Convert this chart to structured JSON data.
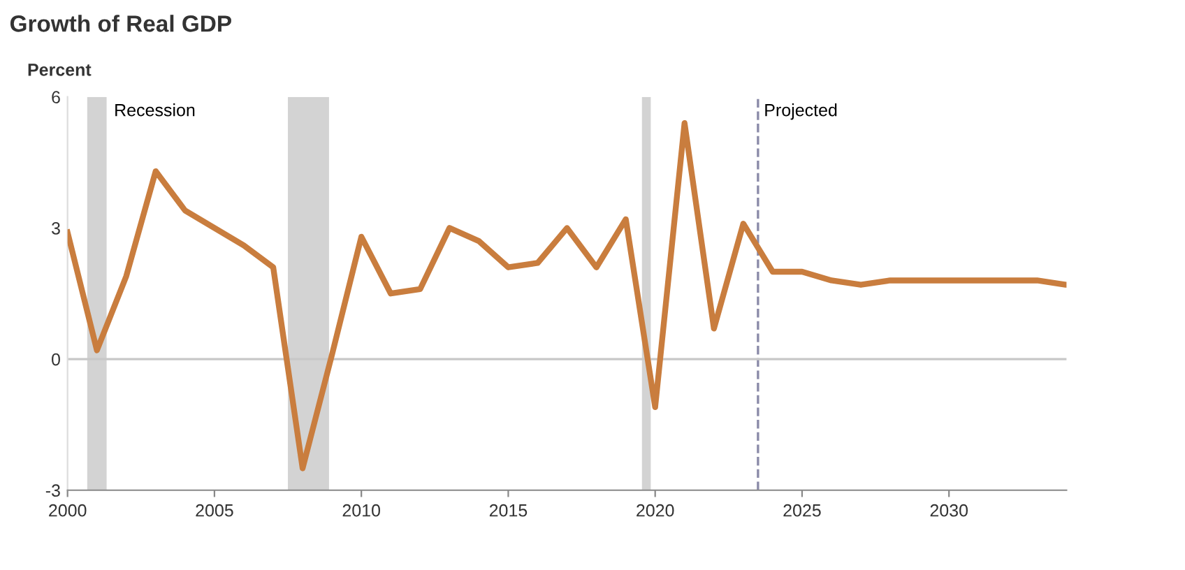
{
  "chart_data": {
    "type": "line",
    "title": "Growth of Real GDP",
    "ylabel": "Percent",
    "x": [
      2000,
      2001,
      2002,
      2003,
      2004,
      2005,
      2006,
      2007,
      2008,
      2009,
      2010,
      2011,
      2012,
      2013,
      2014,
      2015,
      2016,
      2017,
      2018,
      2019,
      2020,
      2021,
      2022,
      2023,
      2024,
      2025,
      2026,
      2027,
      2028,
      2029,
      2030,
      2031,
      2032,
      2033,
      2034
    ],
    "series": [
      {
        "color": "#c97d3e",
        "values": [
          2.9,
          0.2,
          1.9,
          4.3,
          3.4,
          3.0,
          2.6,
          2.1,
          -2.5,
          0.1,
          2.8,
          1.5,
          1.6,
          3.0,
          2.7,
          2.1,
          2.2,
          3.0,
          2.1,
          3.2,
          -1.1,
          5.4,
          0.7,
          3.1,
          2.0,
          2.0,
          1.8,
          1.7,
          1.8,
          1.8,
          1.8,
          1.8,
          1.8,
          1.8,
          1.7
        ]
      }
    ],
    "xlim": [
      2000,
      2034
    ],
    "xticks": [
      2000,
      2005,
      2010,
      2015,
      2020,
      2025,
      2030
    ],
    "ylim": [
      -3,
      6
    ],
    "yticks": [
      -3,
      0,
      3,
      6
    ],
    "bands": [
      {
        "axis": "x",
        "from": 2000.67,
        "to": 2001.33,
        "label": "Recession",
        "color": "#d3d3d3"
      },
      {
        "axis": "x",
        "from": 2007.5,
        "to": 2008.9,
        "label": null,
        "color": "#d3d3d3"
      },
      {
        "axis": "x",
        "from": 2019.55,
        "to": 2019.85,
        "label": null,
        "color": "#d3d3d3"
      }
    ],
    "ref_lines": [
      {
        "axis": "x",
        "value": 2023.5,
        "label": "Projected",
        "color": "#8a8aa8",
        "line_style": "dashed"
      },
      {
        "axis": "y",
        "value": 0,
        "label": null,
        "color": "#c8c8c8",
        "line_style": "solid"
      }
    ],
    "grid": false,
    "marker": "none",
    "line_style": "solid"
  }
}
